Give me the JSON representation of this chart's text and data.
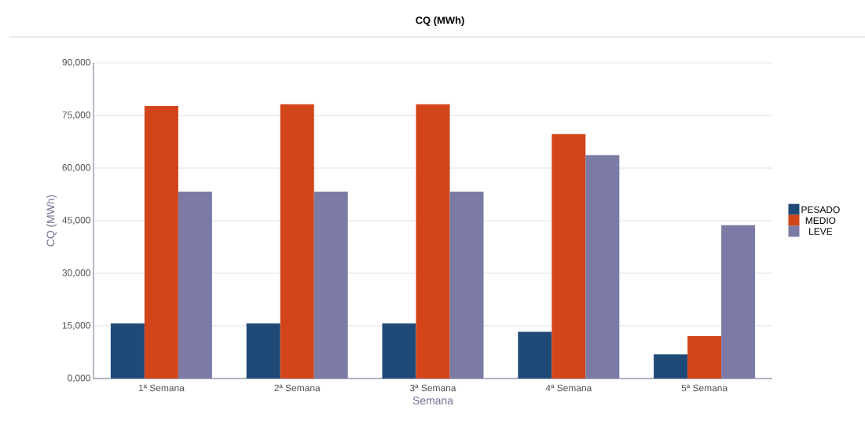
{
  "chart_data": {
    "type": "bar",
    "title": "CQ (MWh)",
    "xlabel": "Semana",
    "ylabel": "CQ (MWh)",
    "categories": [
      "1ª Semana",
      "2ª Semana",
      "3ª Semana",
      "4ª Semana",
      "5ª Semana"
    ],
    "series": [
      {
        "name": "PESADO",
        "color": "#1f4a78",
        "values": [
          15700,
          15700,
          15700,
          13300,
          6900
        ]
      },
      {
        "name": "MEDIO",
        "color": "#d2441a",
        "values": [
          77700,
          78200,
          78200,
          69700,
          12100
        ]
      },
      {
        "name": "LEVE",
        "color": "#7b7ba6",
        "values": [
          53300,
          53300,
          53300,
          63700,
          43700
        ]
      }
    ],
    "ylim": [
      0,
      90000
    ],
    "yticks": [
      {
        "value": 0,
        "label": "0,000"
      },
      {
        "value": 15000,
        "label": "15,000"
      },
      {
        "value": 30000,
        "label": "30,000"
      },
      {
        "value": 45000,
        "label": "45,000"
      },
      {
        "value": 60000,
        "label": "60,000"
      },
      {
        "value": 75000,
        "label": "75,000"
      },
      {
        "value": 90000,
        "label": "90,000"
      }
    ],
    "grid": "y",
    "legend": "right"
  }
}
